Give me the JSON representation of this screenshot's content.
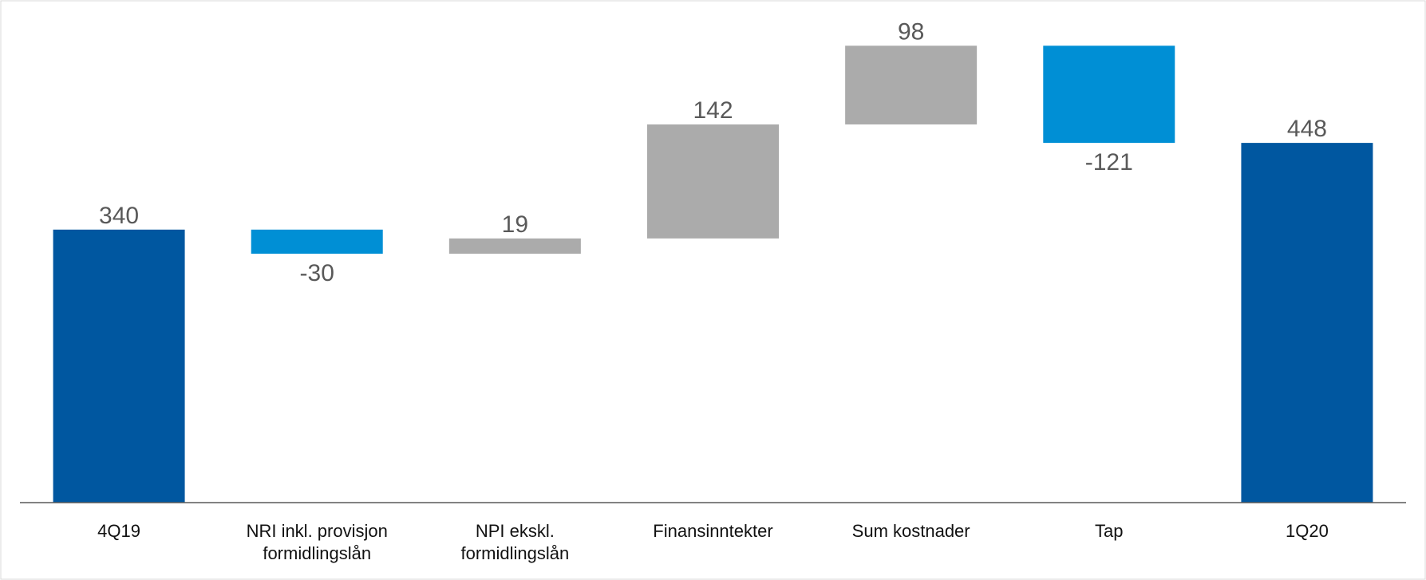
{
  "chart_data": {
    "type": "waterfall",
    "categories": [
      "4Q19",
      "NRI inkl. provisjon formidlingslån",
      "NPI ekskl. formidlingslån",
      "Finansinntekter",
      "Sum kostnader",
      "Tap",
      "1Q20"
    ],
    "values": [
      340,
      -30,
      19,
      142,
      98,
      -121,
      448
    ],
    "measures": [
      "total",
      "relative",
      "relative",
      "relative",
      "relative",
      "relative",
      "total"
    ],
    "colors": [
      "#0057a0",
      "#008fd5",
      "#ababab",
      "#ababab",
      "#ababab",
      "#008fd5",
      "#0057a0"
    ],
    "ylim": [
      0,
      620
    ]
  }
}
